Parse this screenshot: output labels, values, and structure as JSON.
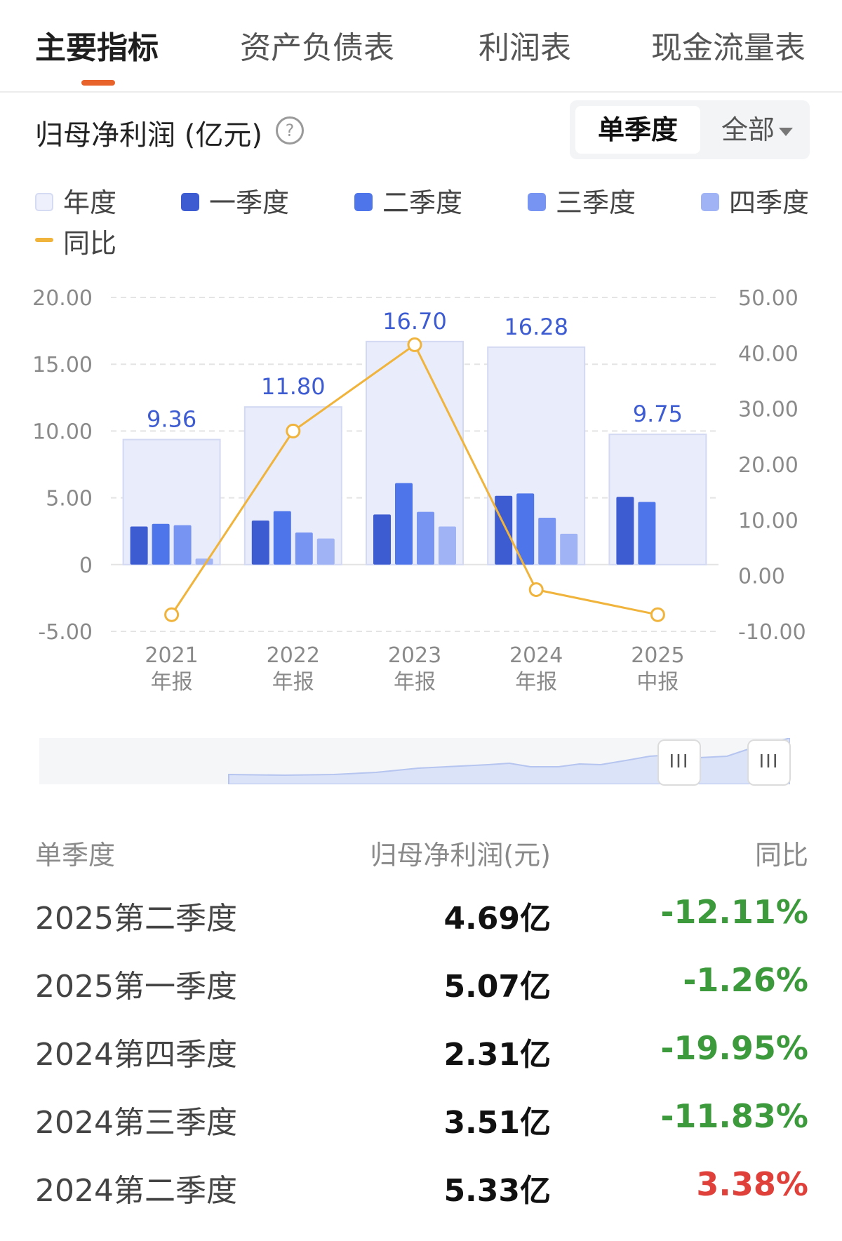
{
  "tabs": [
    {
      "label": "主要指标",
      "active": true
    },
    {
      "label": "资产负债表",
      "active": false
    },
    {
      "label": "利润表",
      "active": false
    },
    {
      "label": "现金流量表",
      "active": false
    }
  ],
  "section": {
    "title": "归母净利润 (亿元)",
    "help_icon": "question-circle-icon"
  },
  "toggle": {
    "active_label": "单季度",
    "dropdown_label": "全部",
    "dropdown_icon": "caret-down-icon"
  },
  "legend": [
    {
      "label": "年度",
      "color": "#e9ecfa"
    },
    {
      "label": "一季度",
      "color": "#3e5cd2"
    },
    {
      "label": "二季度",
      "color": "#4f75ea"
    },
    {
      "label": "三季度",
      "color": "#7894f2"
    },
    {
      "label": "四季度",
      "color": "#a0b3f5"
    },
    {
      "label": "同比",
      "color": "#f0b43c"
    }
  ],
  "chart_data": {
    "type": "bar",
    "categories": [
      [
        "2021",
        "年报"
      ],
      [
        "2022",
        "年报"
      ],
      [
        "2023",
        "年报"
      ],
      [
        "2024",
        "年报"
      ],
      [
        "2025",
        "中报"
      ]
    ],
    "annual": [
      9.36,
      11.8,
      16.7,
      16.28,
      9.75
    ],
    "annual_labels": [
      "9.36",
      "11.80",
      "16.70",
      "16.28",
      "9.75"
    ],
    "series": [
      {
        "name": "一季度",
        "values": [
          2.85,
          3.3,
          3.75,
          5.15,
          5.07
        ]
      },
      {
        "name": "二季度",
        "values": [
          3.05,
          4.0,
          6.1,
          5.33,
          4.69
        ]
      },
      {
        "name": "三季度",
        "values": [
          2.95,
          2.4,
          3.95,
          3.51,
          null
        ]
      },
      {
        "name": "四季度",
        "values": [
          0.45,
          1.95,
          2.85,
          2.31,
          null
        ]
      }
    ],
    "yoy": {
      "name": "同比",
      "values": [
        -7.0,
        26.0,
        41.5,
        -2.5,
        -7.0
      ]
    },
    "y_left": {
      "min": -5,
      "max": 20,
      "ticks": [
        "-5.00",
        "0",
        "5.00",
        "10.00",
        "15.00",
        "20.00"
      ]
    },
    "y_right": {
      "min": -10,
      "max": 50,
      "ticks": [
        "-10.00",
        "0.00",
        "10.00",
        "20.00",
        "30.00",
        "40.00",
        "50.00"
      ]
    },
    "grid": true,
    "colors": {
      "annual_fill": "#e9ecfa",
      "annual_stroke": "#d3d9f2",
      "q1": "#3e5cd2",
      "q2": "#4f75ea",
      "q3": "#7894f2",
      "q4": "#a0b3f5",
      "yoy": "#f0b43c",
      "value_label": "#3e5cd2",
      "axis_text": "#8a8a8a"
    }
  },
  "scroller": {
    "handle_label": "III"
  },
  "table": {
    "headers": [
      "单季度",
      "归母净利润(元)",
      "同比"
    ],
    "rows": [
      {
        "period": "2025第二季度",
        "value": "4.69亿",
        "yoy": "-12.11%",
        "direction": "down"
      },
      {
        "period": "2025第一季度",
        "value": "5.07亿",
        "yoy": "-1.26%",
        "direction": "down"
      },
      {
        "period": "2024第四季度",
        "value": "2.31亿",
        "yoy": "-19.95%",
        "direction": "down"
      },
      {
        "period": "2024第三季度",
        "value": "3.51亿",
        "yoy": "-11.83%",
        "direction": "down"
      },
      {
        "period": "2024第二季度",
        "value": "5.33亿",
        "yoy": "3.38%",
        "direction": "up"
      }
    ],
    "colors": {
      "down": "#3c9a3c",
      "up": "#e0403a"
    }
  }
}
